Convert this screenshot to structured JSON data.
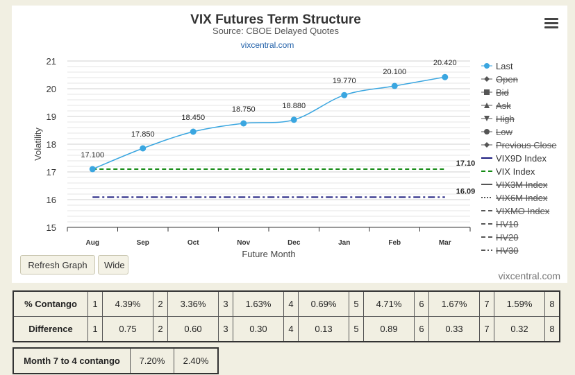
{
  "chart_data": {
    "type": "line",
    "title": "VIX Futures Term Structure",
    "subtitle": "Source: CBOE Delayed Quotes",
    "link_text": "vixcentral.com",
    "xlabel": "Future Month",
    "ylabel": "Volatility",
    "categories": [
      "Aug",
      "Sep",
      "Oct",
      "Nov",
      "Dec",
      "Jan",
      "Feb",
      "Mar"
    ],
    "ylim": [
      15,
      21
    ],
    "yticks": [
      "15",
      "16",
      "17",
      "18",
      "19",
      "20",
      "21"
    ],
    "grid": true,
    "legend_position": "right",
    "series": [
      {
        "name": "Last",
        "values": [
          17.1,
          17.85,
          18.45,
          18.75,
          18.88,
          19.77,
          20.1,
          20.42
        ],
        "labels": [
          "17.100",
          "17.850",
          "18.450",
          "18.750",
          "18.880",
          "19.770",
          "20.100",
          "20.420"
        ],
        "color": "#3aa6e0"
      },
      {
        "name": "VIX Index",
        "value": 17.1,
        "label": "17.10",
        "color": "#138a13",
        "style": "dashed"
      },
      {
        "name": "VIX9D Index",
        "value": 16.09,
        "label": "16.09",
        "color": "#1b1b7e",
        "style": "dashdot"
      }
    ],
    "legend": [
      {
        "label": "Last",
        "marker": "circle",
        "active": true,
        "color": "#3aa6e0"
      },
      {
        "label": "Open",
        "marker": "diamond",
        "active": false
      },
      {
        "label": "Bid",
        "marker": "square",
        "active": false
      },
      {
        "label": "Ask",
        "marker": "triangle",
        "active": false
      },
      {
        "label": "High",
        "marker": "triangle-down",
        "active": false
      },
      {
        "label": "Low",
        "marker": "circle",
        "active": false
      },
      {
        "label": "Previous Close",
        "marker": "diamond",
        "active": false
      },
      {
        "label": "VIX9D Index",
        "marker": "line",
        "active": true,
        "color": "#1b1b7e",
        "dash": ""
      },
      {
        "label": "VIX Index",
        "marker": "line",
        "active": true,
        "color": "#138a13",
        "dash": "6,4"
      },
      {
        "label": "VIX3M Index",
        "marker": "line",
        "active": false,
        "dash": ""
      },
      {
        "label": "VIX6M Index",
        "marker": "line",
        "active": false,
        "dash": "2,2"
      },
      {
        "label": "VIXMO Index",
        "marker": "line",
        "active": false,
        "dash": "6,4"
      },
      {
        "label": "HV10",
        "marker": "line",
        "active": false,
        "dash": "6,4"
      },
      {
        "label": "HV20",
        "marker": "line",
        "active": false,
        "dash": "6,4"
      },
      {
        "label": "HV30",
        "marker": "line",
        "active": false,
        "dash": "6,3,2,3"
      }
    ],
    "colors": {
      "inactive": "#555555",
      "grid": "#e0e0e0",
      "axis": "#333333"
    }
  },
  "buttons": {
    "refresh": "Refresh Graph",
    "wide": "Wide"
  },
  "credit": "vixcentral.com",
  "contango_table": {
    "rows": [
      {
        "label": "% Contango",
        "cells": [
          [
            "1",
            "4.39%"
          ],
          [
            "2",
            "3.36%"
          ],
          [
            "3",
            "1.63%"
          ],
          [
            "4",
            "0.69%"
          ],
          [
            "5",
            "4.71%"
          ],
          [
            "6",
            "1.67%"
          ],
          [
            "7",
            "1.59%"
          ]
        ],
        "last_index": "8"
      },
      {
        "label": "Difference",
        "cells": [
          [
            "1",
            "0.75"
          ],
          [
            "2",
            "0.60"
          ],
          [
            "3",
            "0.30"
          ],
          [
            "4",
            "0.13"
          ],
          [
            "5",
            "0.89"
          ],
          [
            "6",
            "0.33"
          ],
          [
            "7",
            "0.32"
          ]
        ],
        "last_index": "8"
      }
    ]
  },
  "month74": {
    "label": "Month 7 to 4 contango",
    "values": [
      "7.20%",
      "2.40%"
    ]
  }
}
